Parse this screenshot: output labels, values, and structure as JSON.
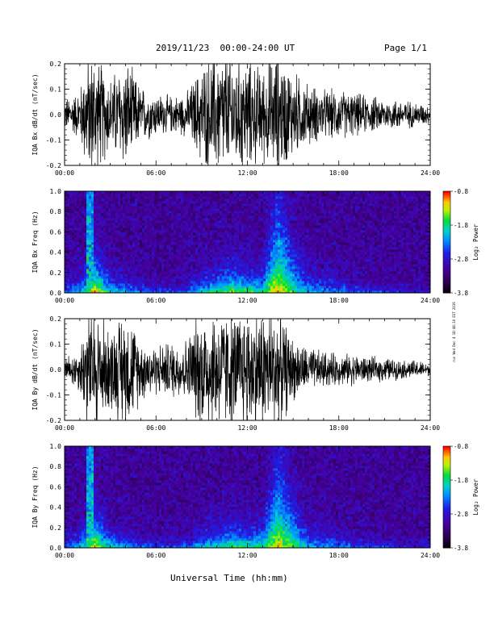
{
  "header": {
    "title": "2019/11/23  00:00-24:00 UT",
    "page": "Page 1/1"
  },
  "footer": {
    "xlabel": "Universal Time (hh:mm)",
    "side_note": "run Wed Dec 4 18:48:10 EST 2019"
  },
  "chart_data": [
    {
      "type": "line",
      "panel": "bx-waveform",
      "title": "",
      "xlabel": "",
      "ylabel": "IQA Bx dB/dt (nT/sec)",
      "x_ticks": [
        "00:00",
        "06:00",
        "12:00",
        "18:00",
        "24:00"
      ],
      "y_ticks": [
        "-0.2",
        "-0.1",
        "0.0",
        "0.1",
        "0.2"
      ],
      "xlim": [
        0,
        24
      ],
      "ylim": [
        -0.2,
        0.2
      ],
      "series": [
        {
          "hours": [
            0,
            1,
            1.5,
            2,
            3,
            4,
            5,
            6,
            7,
            8,
            9,
            10,
            11,
            12,
            13,
            14,
            15,
            16,
            17,
            18,
            19,
            20,
            21,
            22,
            23,
            24
          ],
          "amplitude": [
            0.05,
            0.08,
            0.2,
            0.2,
            0.12,
            0.18,
            0.09,
            0.07,
            0.06,
            0.07,
            0.16,
            0.2,
            0.2,
            0.18,
            0.15,
            0.2,
            0.14,
            0.1,
            0.08,
            0.08,
            0.07,
            0.06,
            0.05,
            0.05,
            0.04,
            0.03
          ]
        }
      ],
      "grid": false,
      "legend": "none"
    },
    {
      "type": "heatmap",
      "panel": "bx-spectrogram",
      "title": "",
      "ylabel": "IQA Bx Freq (Hz)",
      "x_ticks": [
        "00:00",
        "06:00",
        "12:00",
        "18:00",
        "24:00"
      ],
      "y_ticks": [
        "0.0",
        "0.2",
        "0.4",
        "0.6",
        "0.8",
        "1.0"
      ],
      "xlim": [
        0,
        24
      ],
      "ylim": [
        0,
        1.0
      ],
      "colorbar": {
        "label": "Log₂ Power",
        "ticks": [
          "-0.8",
          "-1.8",
          "-2.8",
          "-3.8"
        ],
        "range": [
          -3.8,
          -0.8
        ]
      },
      "activity": {
        "hours": [
          0,
          1,
          2,
          3,
          4,
          5,
          6,
          7,
          8,
          9,
          10,
          11,
          12,
          13,
          14,
          15,
          16,
          17,
          18,
          19,
          20,
          21,
          22,
          23,
          24
        ],
        "level": [
          0.3,
          0.5,
          1.0,
          0.6,
          0.5,
          0.4,
          0.3,
          0.3,
          0.35,
          0.6,
          0.7,
          0.8,
          0.75,
          0.7,
          0.95,
          0.7,
          0.5,
          0.45,
          0.4,
          0.35,
          0.3,
          0.3,
          0.25,
          0.2,
          0.2
        ],
        "max_freq_reach": [
          0.1,
          0.12,
          0.25,
          0.12,
          0.1,
          0.08,
          0.07,
          0.06,
          0.08,
          0.12,
          0.15,
          0.18,
          0.15,
          0.15,
          0.6,
          0.3,
          0.15,
          0.12,
          0.1,
          0.08,
          0.07,
          0.06,
          0.05,
          0.05,
          0.05
        ]
      },
      "spike_hours": [
        1.5,
        1.75
      ]
    },
    {
      "type": "line",
      "panel": "by-waveform",
      "title": "",
      "ylabel": "IQA By dB/dt (nT/sec)",
      "x_ticks": [
        "00:00",
        "06:00",
        "12:00",
        "18:00",
        "24:00"
      ],
      "y_ticks": [
        "-0.2",
        "-0.1",
        "0.0",
        "0.1",
        "0.2"
      ],
      "xlim": [
        0,
        24
      ],
      "ylim": [
        -0.2,
        0.2
      ],
      "series": [
        {
          "hours": [
            0,
            1,
            1.5,
            2,
            3,
            4,
            5,
            6,
            7,
            8,
            9,
            10,
            11,
            12,
            13,
            14,
            15,
            16,
            17,
            18,
            19,
            20,
            21,
            22,
            23,
            24
          ],
          "amplitude": [
            0.04,
            0.07,
            0.2,
            0.2,
            0.13,
            0.2,
            0.1,
            0.08,
            0.09,
            0.1,
            0.2,
            0.2,
            0.18,
            0.2,
            0.2,
            0.2,
            0.1,
            0.07,
            0.06,
            0.05,
            0.05,
            0.04,
            0.04,
            0.03,
            0.03,
            0.02
          ]
        }
      ],
      "grid": false,
      "legend": "none"
    },
    {
      "type": "heatmap",
      "panel": "by-spectrogram",
      "title": "",
      "ylabel": "IQA By Freq (Hz)",
      "x_ticks": [
        "00:00",
        "06:00",
        "12:00",
        "18:00",
        "24:00"
      ],
      "y_ticks": [
        "0.0",
        "0.2",
        "0.4",
        "0.6",
        "0.8",
        "1.0"
      ],
      "xlim": [
        0,
        24
      ],
      "ylim": [
        0,
        1.0
      ],
      "colorbar": {
        "label": "Log₂ Power",
        "ticks": [
          "-0.8",
          "-1.8",
          "-2.8",
          "-3.8"
        ],
        "range": [
          -3.8,
          -0.8
        ]
      },
      "activity": {
        "hours": [
          0,
          1,
          2,
          3,
          4,
          5,
          6,
          7,
          8,
          9,
          10,
          11,
          12,
          13,
          14,
          15,
          16,
          17,
          18,
          19,
          20,
          21,
          22,
          23,
          24
        ],
        "level": [
          0.3,
          0.5,
          0.95,
          0.6,
          0.5,
          0.4,
          0.3,
          0.3,
          0.35,
          0.55,
          0.65,
          0.75,
          0.7,
          0.7,
          0.95,
          0.75,
          0.5,
          0.45,
          0.4,
          0.35,
          0.3,
          0.28,
          0.25,
          0.2,
          0.2
        ],
        "max_freq_reach": [
          0.1,
          0.12,
          0.25,
          0.12,
          0.1,
          0.08,
          0.07,
          0.06,
          0.08,
          0.12,
          0.14,
          0.16,
          0.14,
          0.15,
          0.55,
          0.3,
          0.15,
          0.12,
          0.1,
          0.08,
          0.07,
          0.06,
          0.05,
          0.05,
          0.05
        ]
      },
      "spike_hours": [
        1.5,
        1.75
      ]
    }
  ]
}
